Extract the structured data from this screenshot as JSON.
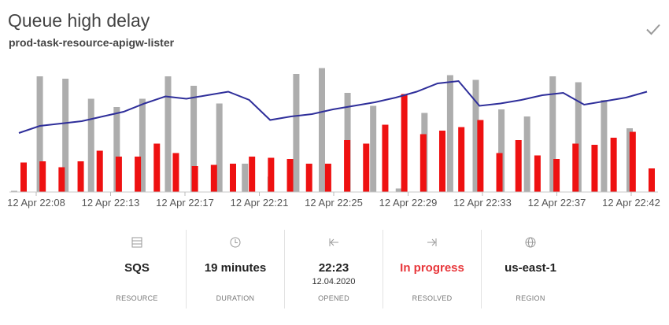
{
  "card": {
    "title": "Queue high delay",
    "subtitle": "prod-task-resource-apigw-lister"
  },
  "icons": {
    "dismiss": "check-icon",
    "resource": "server-icon",
    "duration": "clock-icon",
    "opened": "arrow-to-left-icon",
    "resolved": "arrow-to-right-icon",
    "region": "globe-icon"
  },
  "colors": {
    "line": "#2e2e9a",
    "red_bar": "#ee1111",
    "gray_bar": "#adadad",
    "status_red": "#e8363a"
  },
  "chart_data": {
    "type": "bar",
    "x_ticks": [
      "12 Apr 22:08",
      "12 Apr 22:13",
      "12 Apr 22:17",
      "12 Apr 22:21",
      "12 Apr 22:25",
      "12 Apr 22:29",
      "12 Apr 22:33",
      "12 Apr 22:37",
      "12 Apr 22:42"
    ],
    "ylim": [
      0,
      100
    ],
    "grid": false,
    "legend": "none",
    "series": [
      {
        "kind": "bar",
        "color": "red",
        "values": [
          25,
          26,
          21,
          26,
          35,
          30,
          30,
          41,
          33,
          22,
          23,
          24,
          30,
          29,
          28,
          24,
          24,
          44,
          41,
          57,
          83,
          49,
          52,
          55,
          61,
          33,
          44,
          31,
          28,
          41,
          40,
          46,
          51,
          20
        ]
      },
      {
        "kind": "bar",
        "color": "gray",
        "values": [
          1,
          98,
          96,
          79,
          72,
          79,
          98,
          90,
          75,
          24,
          13,
          100,
          105,
          84,
          73,
          3,
          67,
          99,
          95,
          70,
          64,
          98,
          93,
          78,
          54
        ]
      },
      {
        "kind": "line",
        "color": "blue",
        "values": [
          50,
          56,
          58,
          60,
          64,
          68,
          75,
          81,
          79,
          82,
          85,
          78,
          61,
          64,
          66,
          70,
          73,
          76,
          80,
          85,
          92,
          94,
          73,
          75,
          78,
          82,
          84,
          74,
          77,
          80,
          85
        ]
      }
    ]
  },
  "stats": [
    {
      "value": "SQS",
      "sub": "",
      "label": "RESOURCE"
    },
    {
      "value": "19 minutes",
      "sub": "",
      "label": "DURATION"
    },
    {
      "value": "22:23",
      "sub": "12.04.2020",
      "label": "OPENED"
    },
    {
      "value": "In progress",
      "sub": "",
      "label": "RESOLVED"
    },
    {
      "value": "us-east-1",
      "sub": "",
      "label": "REGION"
    }
  ]
}
